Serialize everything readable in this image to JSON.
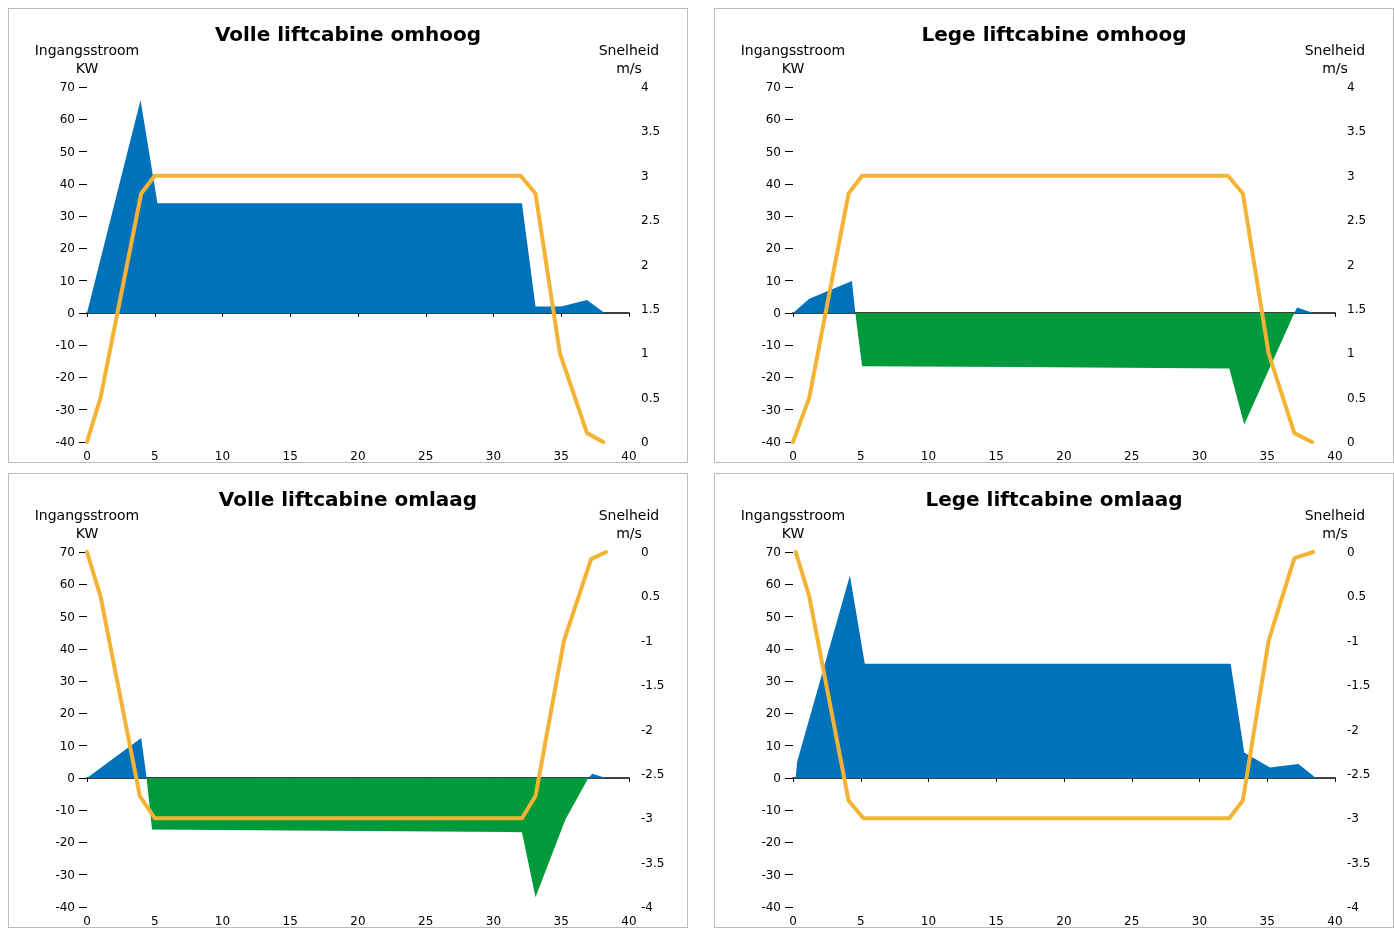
{
  "chart_data": [
    {
      "type": "area",
      "title": "Volle liftcabine omhoog",
      "ylabel": "Ingangsstroom\nKW",
      "y2label": "Snelheid\nm/s",
      "xlim": [
        0,
        40
      ],
      "xticks": [
        0,
        5,
        10,
        15,
        20,
        25,
        30,
        35,
        40
      ],
      "ylim": [
        -40,
        70
      ],
      "yticks": [
        -40,
        -30,
        -20,
        -10,
        0,
        10,
        20,
        30,
        40,
        50,
        60,
        70
      ],
      "y2lim": [
        0,
        4
      ],
      "y2ticks": [
        0,
        0.5,
        1,
        1.5,
        2,
        2.5,
        3,
        3.5,
        4
      ],
      "series": [
        {
          "color": "#0072bc",
          "x": [
            0,
            3.95,
            5.2,
            32.1,
            33.1,
            35.0,
            36.9,
            38.2
          ],
          "values": [
            0,
            66,
            34,
            34,
            2,
            2,
            4,
            0
          ]
        },
        {
          "type": "line",
          "axis": "y2",
          "color": "#f5b335",
          "x": [
            0,
            1,
            4,
            5,
            32,
            33.1,
            34.9,
            36.9,
            38.1
          ],
          "values": [
            0,
            0.5,
            2.8,
            3,
            3,
            2.8,
            1,
            0.1,
            0
          ]
        }
      ]
    },
    {
      "type": "area",
      "title": "Lege liftcabine omhoog",
      "ylabel": "Ingangsstroom\nKW",
      "y2label": "Snelheid\nm/s",
      "xlim": [
        0,
        40
      ],
      "xticks": [
        0,
        5,
        10,
        15,
        20,
        25,
        30,
        35,
        40
      ],
      "ylim": [
        -40,
        70
      ],
      "yticks": [
        -40,
        -30,
        -20,
        -10,
        0,
        10,
        20,
        30,
        40,
        50,
        60,
        70
      ],
      "y2lim": [
        0,
        4
      ],
      "y2ticks": [
        0,
        0.5,
        1,
        1.5,
        2,
        2.5,
        3,
        3.5,
        4
      ],
      "series": [
        {
          "color": "#0072bc",
          "x": [
            0,
            1.2,
            4.35,
            4.6,
            37.0,
            37.2,
            38.4
          ],
          "values": [
            0,
            4.4,
            9.9,
            0,
            0,
            1.7,
            0
          ]
        },
        {
          "color": "#009a3a",
          "x": [
            4.6,
            5.1,
            32.2,
            33.3,
            37.0
          ],
          "values": [
            0,
            -16.5,
            -17.2,
            -34.6,
            0
          ]
        },
        {
          "type": "line",
          "axis": "y2",
          "color": "#f5b335",
          "x": [
            0,
            1.2,
            4.1,
            5.1,
            32.1,
            33.2,
            35.1,
            37.0,
            38.3
          ],
          "values": [
            0,
            0.5,
            2.8,
            3,
            3,
            2.8,
            1,
            0.1,
            0
          ]
        }
      ]
    },
    {
      "type": "area",
      "title": "Volle liftcabine omlaag",
      "ylabel": "Ingangsstroom\nKW",
      "y2label": "Snelheid\nm/s",
      "xlim": [
        0,
        40
      ],
      "xticks": [
        0,
        5,
        10,
        15,
        20,
        25,
        30,
        35,
        40
      ],
      "ylim": [
        -40,
        70
      ],
      "yticks": [
        -40,
        -30,
        -20,
        -10,
        0,
        10,
        20,
        30,
        40,
        50,
        60,
        70
      ],
      "y2lim": [
        -4,
        0
      ],
      "y2ticks": [
        -4,
        -3.5,
        -3,
        -2.5,
        -2,
        -1.5,
        -1,
        {
          "value": -0.5,
          "label": "0.5"
        },
        0
      ],
      "series": [
        {
          "color": "#0072bc",
          "x": [
            0,
            4.0,
            4.4,
            37.0,
            37.3,
            38.3
          ],
          "values": [
            0,
            12.4,
            0,
            0,
            1.3,
            0
          ]
        },
        {
          "color": "#009a3a",
          "x": [
            4.4,
            4.8,
            32.1,
            33.1,
            35.3,
            37.0
          ],
          "values": [
            0,
            -16,
            -16.8,
            -37,
            -13,
            0
          ]
        },
        {
          "type": "line",
          "axis": "y2",
          "color": "#f5b335",
          "x": [
            0,
            1,
            3.9,
            5,
            32.1,
            33.1,
            35.2,
            37.2,
            38.3
          ],
          "values": [
            0,
            -0.5,
            -2.75,
            -3,
            -3,
            -2.75,
            -1,
            -0.08,
            0
          ]
        }
      ]
    },
    {
      "type": "area",
      "title": "Lege liftcabine omlaag",
      "ylabel": "Ingangsstroom\nKW",
      "y2label": "Snelheid\nm/s",
      "xlim": [
        0,
        40
      ],
      "xticks": [
        0,
        5,
        10,
        15,
        20,
        25,
        30,
        35,
        40
      ],
      "ylim": [
        -40,
        70
      ],
      "yticks": [
        -40,
        -30,
        -20,
        -10,
        0,
        10,
        20,
        30,
        40,
        50,
        60,
        70
      ],
      "y2lim": [
        -4,
        0
      ],
      "y2ticks": [
        -4,
        -3.5,
        -3,
        -2.5,
        -2,
        -1.5,
        -1,
        {
          "value": -0.5,
          "label": "0.5"
        },
        0
      ],
      "series": [
        {
          "color": "#0072bc",
          "x": [
            0.2,
            0.3,
            4.2,
            5.3,
            32.3,
            33.3,
            35.2,
            37.3,
            38.6
          ],
          "values": [
            0,
            4.9,
            62.7,
            35.4,
            35.4,
            7.9,
            3.2,
            4.3,
            0
          ]
        },
        {
          "type": "line",
          "axis": "y2",
          "color": "#f5b335",
          "x": [
            0.2,
            1.2,
            4.1,
            5.2,
            32.2,
            33.2,
            35.1,
            37.0,
            38.4
          ],
          "values": [
            0,
            -0.5,
            -2.8,
            -3,
            -3,
            -2.8,
            -1,
            -0.07,
            0
          ]
        }
      ]
    }
  ]
}
